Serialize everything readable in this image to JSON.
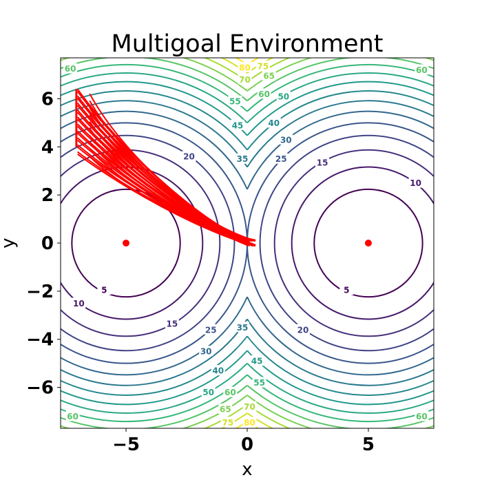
{
  "chart_data": {
    "type": "contour",
    "title": "Multigoal Environment",
    "xlabel": "x",
    "ylabel": "y",
    "xlim": [
      -7.7,
      7.7
    ],
    "ylim": [
      -7.7,
      7.7
    ],
    "xticks": [
      -5,
      0,
      5
    ],
    "xtick_labels": [
      "−5",
      "0",
      "5"
    ],
    "yticks": [
      -6,
      -4,
      -2,
      0,
      2,
      4,
      6
    ],
    "ytick_labels": [
      "−6",
      "−4",
      "−2",
      "0",
      "2",
      "4",
      "6"
    ],
    "grid": false,
    "legend": "none",
    "contour_levels": [
      5,
      10,
      15,
      20,
      25,
      30,
      35,
      40,
      45,
      50,
      55,
      60,
      65,
      70,
      75,
      80
    ],
    "contour_field": "min distance squared to goals at (-5,0) and (5,0)",
    "contour_labels": [
      {
        "text": "5",
        "x": -5.9,
        "y": -1.95
      },
      {
        "text": "10",
        "x": -6.95,
        "y": -2.5
      },
      {
        "text": "15",
        "x": -3.1,
        "y": -3.35
      },
      {
        "text": "20",
        "x": -2.4,
        "y": 3.6
      },
      {
        "text": "25",
        "x": -1.5,
        "y": -3.6
      },
      {
        "text": "30",
        "x": -1.7,
        "y": -4.5
      },
      {
        "text": "35",
        "x": -0.2,
        "y": 3.5
      },
      {
        "text": "35",
        "x": -0.2,
        "y": -3.5
      },
      {
        "text": "40",
        "x": -1.2,
        "y": -5.3
      },
      {
        "text": "45",
        "x": -0.4,
        "y": 4.9
      },
      {
        "text": "45",
        "x": 0.4,
        "y": -4.9
      },
      {
        "text": "50",
        "x": -1.6,
        "y": -6.2
      },
      {
        "text": "55",
        "x": -0.5,
        "y": 5.9
      },
      {
        "text": "55",
        "x": 0.5,
        "y": -5.8
      },
      {
        "text": "60",
        "x": -7.3,
        "y": 7.25
      },
      {
        "text": "60",
        "x": -0.7,
        "y": -6.2
      },
      {
        "text": "60",
        "x": -7.2,
        "y": -7.2
      },
      {
        "text": "65",
        "x": -0.9,
        "y": -6.9
      },
      {
        "text": "70",
        "x": -0.1,
        "y": 6.8
      },
      {
        "text": "70",
        "x": 0.1,
        "y": -6.8
      },
      {
        "text": "75",
        "x": -0.8,
        "y": -7.45
      },
      {
        "text": "80",
        "x": -0.1,
        "y": 7.3
      },
      {
        "text": "80",
        "x": 0.1,
        "y": -7.45
      },
      {
        "text": "75",
        "x": 0.65,
        "y": 7.35
      },
      {
        "text": "65",
        "x": 0.9,
        "y": 6.95
      },
      {
        "text": "60",
        "x": 0.7,
        "y": 6.2
      },
      {
        "text": "50",
        "x": 1.5,
        "y": 6.1
      },
      {
        "text": "40",
        "x": 1.1,
        "y": 5.0
      },
      {
        "text": "30",
        "x": 1.6,
        "y": 4.3
      },
      {
        "text": "25",
        "x": 1.4,
        "y": 3.5
      },
      {
        "text": "15",
        "x": 3.1,
        "y": 3.35
      },
      {
        "text": "10",
        "x": 6.95,
        "y": 2.5
      },
      {
        "text": "5",
        "x": 4.1,
        "y": -1.95
      },
      {
        "text": "20",
        "x": 2.3,
        "y": -3.6
      },
      {
        "text": "60",
        "x": 7.2,
        "y": 7.2
      },
      {
        "text": "60",
        "x": 7.2,
        "y": -7.2
      }
    ],
    "goals": [
      {
        "x": -5,
        "y": 0
      },
      {
        "x": 5,
        "y": 0
      }
    ],
    "trajectories": {
      "count": 30,
      "start": [
        0,
        0
      ],
      "end_x": -7.0,
      "end_y_range": [
        3.6,
        6.4
      ],
      "color": "#ff0000"
    },
    "colormap": "viridis",
    "vmin": 5,
    "vmax": 80
  }
}
